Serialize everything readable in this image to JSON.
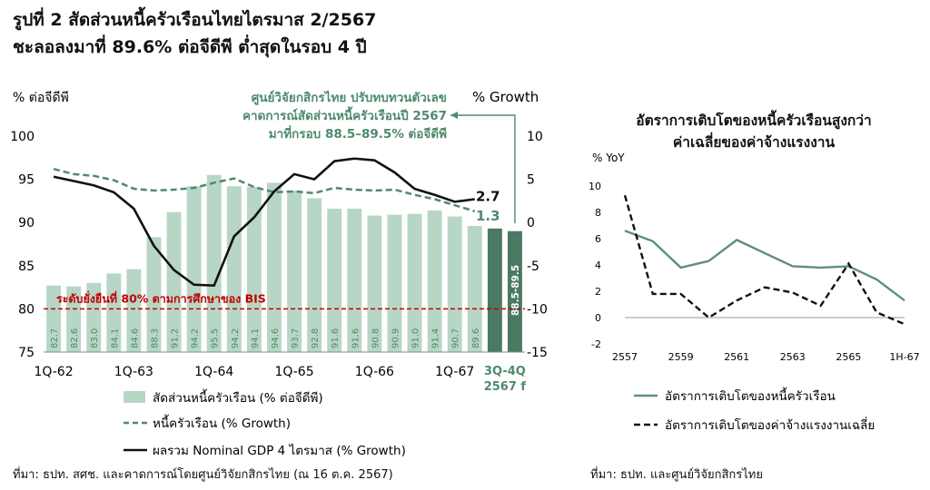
{
  "headline": {
    "line1": "รูปที่ 2 สัดส่วนหนี้ครัวเรือนไทยไตรมาส 2/2567",
    "line2": "ชะลอลงมาที่ 89.6% ต่อจีดีพี ต่ำสุดในรอบ 4 ปี"
  },
  "colors": {
    "bar": "#b7d6c6",
    "bar_forecast": "#4a7a63",
    "household_line": "#4e8a6c",
    "gdp_line": "#111111",
    "threshold": "#c00000",
    "annotation": "#4e8a6c",
    "right_household": "#5e8f78",
    "right_wage": "#111111"
  },
  "chart_data": [
    {
      "type": "bar",
      "left_axis_label": "% ต่อจีดีพี",
      "right_axis_label": "% Growth",
      "ylim_left": [
        75,
        100
      ],
      "yticks_left": [
        75,
        80,
        85,
        90,
        95,
        100
      ],
      "ylim_right": [
        -15,
        10
      ],
      "yticks_right": [
        -15,
        -10,
        -5,
        0,
        5,
        10
      ],
      "x_tick_labels": [
        "1Q-62",
        "1Q-63",
        "1Q-64",
        "1Q-65",
        "1Q-66",
        "1Q-67"
      ],
      "forecast_label_line1": "3Q-4Q",
      "forecast_label_line2": "2567 f",
      "bars": [
        82.7,
        82.6,
        83.0,
        84.1,
        84.6,
        88.3,
        91.2,
        94.2,
        95.5,
        94.2,
        94.1,
        94.6,
        93.7,
        92.8,
        91.6,
        91.6,
        90.8,
        90.9,
        91.0,
        91.4,
        90.7,
        89.6
      ],
      "bar_labels": [
        "82.7",
        "82.6",
        "83.0",
        "84.1",
        "84.6",
        "88.3",
        "91.2",
        "94.2",
        "95.5",
        "94.2",
        "94.1",
        "94.6",
        "93.7",
        "92.8",
        "91.6",
        "91.6",
        "90.8",
        "90.9",
        "91.0",
        "91.4",
        "90.7",
        "89.6"
      ],
      "forecast_bars": [
        89.3,
        89.0
      ],
      "forecast_bar_label": "88.5-89.5",
      "household_growth": [
        6.2,
        5.6,
        5.4,
        4.9,
        3.9,
        3.7,
        3.8,
        4.0,
        4.6,
        5.1,
        4.1,
        3.5,
        3.6,
        3.4,
        4.0,
        3.8,
        3.7,
        3.8,
        3.2,
        2.7,
        2.0,
        1.3
      ],
      "household_end_label": "1.3",
      "gdp_growth": [
        5.3,
        4.8,
        4.3,
        3.5,
        1.6,
        -2.7,
        -5.5,
        -7.2,
        -7.3,
        -1.6,
        0.6,
        3.6,
        5.6,
        5.0,
        7.1,
        7.4,
        7.2,
        5.8,
        3.9,
        3.2,
        2.4,
        2.7
      ],
      "gdp_end_label": "2.7",
      "threshold_value": 80,
      "threshold_label": "ระดับยั่งยืนที่ 80% ตามการศึกษาของ BIS",
      "annotation_lines": [
        "ศูนย์วิจัยกสิกรไทย ปรับทบทวนตัวเลข",
        "คาดการณ์สัดส่วนหนี้ครัวเรือนปี 2567",
        "มาที่กรอบ 88.5–89.5% ต่อจีดีพี"
      ],
      "legend": [
        "สัดส่วนหนี้ครัวเรือน (% ต่อจีดีพี)",
        "หนี้ครัวเรือน (% Growth)",
        "ผลรวม Nominal GDP 4 ไตรมาส (% Growth)"
      ]
    },
    {
      "type": "line",
      "title_line1": "อัตราการเติบโตของหนี้ครัวเรือนสูงกว่า",
      "title_line2": "ค่าเฉลี่ยของค่าจ้างแรงงาน",
      "ylabel": "% YoY",
      "ylim": [
        -2,
        10
      ],
      "yticks": [
        -2,
        0,
        2,
        4,
        6,
        8,
        10
      ],
      "x_tick_labels": [
        "2557",
        "2559",
        "2561",
        "2563",
        "2565",
        "1H-67"
      ],
      "series": [
        {
          "name": "อัตราการเติบโตของหนี้ครัวเรือน",
          "values": [
            6.6,
            5.8,
            3.8,
            4.3,
            5.9,
            4.9,
            3.9,
            3.8,
            3.9,
            2.9,
            1.3
          ]
        },
        {
          "name": "อัตราการเติบโตของค่าจ้างแรงงานเฉลี่ย",
          "values": [
            9.3,
            1.8,
            1.8,
            0.0,
            1.3,
            2.3,
            1.9,
            0.9,
            4.1,
            0.4,
            -0.5
          ]
        }
      ]
    }
  ],
  "sources": {
    "left": "ที่มา: ธปท. สศช. และคาดการณ์โดยศูนย์วิจัยกสิกรไทย (ณ 16 ต.ค. 2567)",
    "right": "ที่มา: ธปท. และศูนย์วิจัยกสิกรไทย"
  }
}
